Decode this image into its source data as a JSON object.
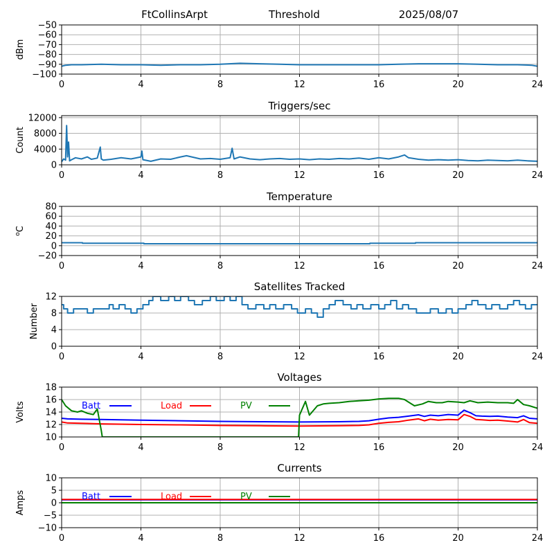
{
  "header": {
    "station": "FtCollinsArpt",
    "title": "Threshold",
    "date": "2025/08/07"
  },
  "colors": {
    "default_line": "#1f77b4",
    "batt": "#0000ff",
    "load": "#ff0000",
    "pv": "#008000",
    "grid": "#b0b0b0"
  },
  "chart_data": [
    {
      "type": "line",
      "title": "",
      "xlabel": "",
      "ylabel": "dBm",
      "xlim": [
        0,
        24
      ],
      "ylim": [
        -100,
        -50
      ],
      "xticks": [
        0,
        4,
        8,
        12,
        16,
        20,
        24
      ],
      "yticks": [
        -100,
        -90,
        -80,
        -70,
        -60,
        -50
      ],
      "grid": true,
      "series": [
        {
          "x": [
            0,
            0.2,
            0.5,
            1,
            2,
            3,
            4,
            5,
            6,
            7,
            8,
            9,
            10,
            11,
            12,
            13,
            14,
            15,
            16,
            17,
            18,
            19,
            20,
            21,
            22,
            23,
            23.7,
            24
          ],
          "y": [
            -92,
            -91,
            -90.5,
            -90.5,
            -90,
            -90.5,
            -90.5,
            -91,
            -90.5,
            -90.5,
            -90,
            -89,
            -89.5,
            -90,
            -90.5,
            -90.5,
            -90.5,
            -90.5,
            -90.5,
            -90,
            -89.5,
            -89.5,
            -89.5,
            -90,
            -90.5,
            -90.5,
            -91,
            -92
          ]
        }
      ]
    },
    {
      "type": "line",
      "title": "Triggers/sec",
      "xlabel": "",
      "ylabel": "Count",
      "xlim": [
        0,
        24
      ],
      "ylim": [
        0,
        12500
      ],
      "xticks": [
        0,
        4,
        8,
        12,
        16,
        20,
        24
      ],
      "yticks": [
        0,
        4000,
        8000,
        12000
      ],
      "grid": true,
      "series": [
        {
          "x": [
            0,
            0.1,
            0.2,
            0.25,
            0.3,
            0.35,
            0.4,
            0.5,
            0.7,
            1,
            1.3,
            1.5,
            1.8,
            1.95,
            2,
            2.1,
            2.5,
            3,
            3.5,
            4,
            4.05,
            4.1,
            4.5,
            5,
            5.5,
            6,
            6.3,
            7,
            7.5,
            8,
            8.5,
            8.6,
            8.7,
            9,
            9.5,
            10,
            10.5,
            11,
            11.5,
            12,
            12.5,
            13,
            13.5,
            14,
            14.5,
            15,
            15.5,
            16,
            16.5,
            17,
            17.3,
            17.5,
            18,
            18.5,
            19,
            19.5,
            20,
            20.5,
            21,
            21.5,
            22,
            22.5,
            23,
            23.5,
            24
          ],
          "y": [
            800,
            1500,
            1200,
            10000,
            2000,
            5800,
            1000,
            1300,
            1800,
            1500,
            2000,
            1400,
            1700,
            4500,
            1500,
            1200,
            1400,
            1800,
            1500,
            2000,
            3500,
            1300,
            900,
            1500,
            1400,
            2000,
            2300,
            1500,
            1600,
            1400,
            1800,
            4200,
            1500,
            2000,
            1500,
            1300,
            1500,
            1600,
            1400,
            1500,
            1300,
            1500,
            1400,
            1600,
            1500,
            1700,
            1400,
            1800,
            1500,
            2000,
            2500,
            1800,
            1400,
            1200,
            1300,
            1200,
            1300,
            1100,
            1000,
            1200,
            1100,
            1000,
            1200,
            1000,
            900
          ]
        }
      ]
    },
    {
      "type": "line",
      "title": "Temperature",
      "xlabel": "",
      "ylabel": "°C",
      "ylabel_prefix": "o",
      "ylabel_main": "C",
      "xlim": [
        0,
        24
      ],
      "ylim": [
        -20,
        80
      ],
      "xticks": [
        0,
        4,
        8,
        12,
        16,
        20,
        24
      ],
      "yticks": [
        -20,
        0,
        20,
        40,
        60,
        80
      ],
      "grid": true,
      "series": [
        {
          "x": [
            0,
            1,
            1.05,
            4.1,
            4.15,
            15.5,
            15.55,
            17.8,
            17.85,
            24
          ],
          "y": [
            6,
            6,
            5,
            5,
            4,
            4,
            5,
            5,
            6,
            6
          ],
          "step": true
        }
      ]
    },
    {
      "type": "line",
      "title": "Satellites Tracked",
      "xlabel": "",
      "ylabel": "Number",
      "xlim": [
        0,
        24
      ],
      "ylim": [
        0,
        12
      ],
      "xticks": [
        0,
        4,
        8,
        12,
        16,
        20,
        24
      ],
      "yticks": [
        0,
        4,
        8,
        12
      ],
      "grid": true,
      "series": [
        {
          "x": [
            0,
            0.1,
            0.3,
            0.6,
            1,
            1.3,
            1.6,
            2.2,
            2.4,
            2.6,
            2.9,
            3.2,
            3.5,
            3.8,
            4.1,
            4.4,
            4.6,
            5,
            5.4,
            5.7,
            6,
            6.4,
            6.7,
            7.1,
            7.5,
            7.8,
            8.2,
            8.5,
            8.8,
            9.1,
            9.4,
            9.8,
            10.2,
            10.5,
            10.8,
            11.2,
            11.6,
            11.9,
            12.3,
            12.6,
            12.9,
            13.2,
            13.5,
            13.8,
            14.2,
            14.6,
            14.9,
            15.2,
            15.6,
            16,
            16.3,
            16.6,
            16.9,
            17.2,
            17.5,
            17.9,
            18.3,
            18.6,
            19,
            19.4,
            19.7,
            20,
            20.4,
            20.7,
            21,
            21.4,
            21.7,
            22.1,
            22.5,
            22.8,
            23.1,
            23.4,
            23.7,
            24
          ],
          "y": [
            10,
            9,
            8,
            9,
            9,
            8,
            9,
            9,
            10,
            9,
            10,
            9,
            8,
            9,
            10,
            11,
            12,
            11,
            12,
            11,
            12,
            11,
            10,
            11,
            12,
            11,
            12,
            11,
            12,
            10,
            9,
            10,
            9,
            10,
            9,
            10,
            9,
            8,
            9,
            8,
            7,
            9,
            10,
            11,
            10,
            9,
            10,
            9,
            10,
            9,
            10,
            11,
            9,
            10,
            9,
            8,
            8,
            9,
            8,
            9,
            8,
            9,
            10,
            11,
            10,
            9,
            10,
            9,
            10,
            11,
            10,
            9,
            10,
            10
          ],
          "step": true
        }
      ]
    },
    {
      "type": "line",
      "title": "Voltages",
      "xlabel": "",
      "ylabel": "Volts",
      "xlim": [
        0,
        24
      ],
      "ylim": [
        10,
        18
      ],
      "xticks": [
        0,
        4,
        8,
        12,
        16,
        20,
        24
      ],
      "yticks": [
        10,
        12,
        14,
        16,
        18
      ],
      "grid": true,
      "legend": "top",
      "series": [
        {
          "name": "Batt",
          "x": [
            0,
            0.3,
            1,
            2,
            4,
            6,
            8,
            10,
            12,
            14,
            15,
            15.5,
            16,
            16.5,
            17,
            17.5,
            18,
            18.3,
            18.6,
            19,
            19.5,
            20,
            20.3,
            20.6,
            20.9,
            21.2,
            21.6,
            22,
            22.5,
            23,
            23.3,
            23.6,
            24
          ],
          "y": [
            13,
            12.9,
            12.85,
            12.8,
            12.7,
            12.6,
            12.5,
            12.45,
            12.4,
            12.45,
            12.5,
            12.6,
            12.85,
            13.05,
            13.15,
            13.35,
            13.55,
            13.3,
            13.5,
            13.4,
            13.6,
            13.5,
            14.3,
            13.9,
            13.4,
            13.35,
            13.3,
            13.35,
            13.2,
            13.1,
            13.4,
            13.0,
            12.9
          ]
        },
        {
          "name": "Load",
          "x": [
            0,
            0.3,
            1,
            2,
            4,
            6,
            8,
            10,
            12,
            14,
            15,
            15.5,
            16,
            16.5,
            17,
            17.5,
            18,
            18.3,
            18.6,
            19,
            19.5,
            20,
            20.3,
            20.6,
            20.9,
            21.2,
            21.6,
            22,
            22.5,
            23,
            23.3,
            23.6,
            24
          ],
          "y": [
            12.4,
            12.25,
            12.2,
            12.1,
            12.0,
            11.95,
            11.85,
            11.8,
            11.75,
            11.8,
            11.85,
            11.95,
            12.2,
            12.35,
            12.45,
            12.7,
            12.9,
            12.6,
            12.85,
            12.7,
            12.8,
            12.75,
            13.6,
            13.3,
            12.8,
            12.75,
            12.65,
            12.7,
            12.55,
            12.4,
            12.8,
            12.3,
            12.2
          ]
        },
        {
          "name": "PV",
          "x": [
            0,
            0.2,
            0.5,
            0.8,
            1.0,
            1.3,
            1.6,
            1.8,
            2.0,
            2.05,
            11.95,
            12.0,
            12.3,
            12.5,
            12.9,
            13.2,
            13.5,
            14.0,
            14.5,
            15.0,
            15.5,
            16.0,
            16.5,
            17.0,
            17.3,
            17.5,
            17.8,
            18.2,
            18.5,
            18.9,
            19.2,
            19.5,
            20.0,
            20.3,
            20.6,
            21.0,
            21.5,
            22.0,
            22.5,
            22.8,
            23.0,
            23.3,
            23.6,
            24
          ],
          "y": [
            16,
            15,
            14.2,
            14.0,
            14.2,
            13.8,
            13.6,
            14.5,
            11,
            10,
            10,
            13.5,
            15.7,
            13.5,
            15.0,
            15.3,
            15.4,
            15.5,
            15.7,
            15.8,
            15.9,
            16.1,
            16.2,
            16.2,
            16.0,
            15.6,
            15.0,
            15.3,
            15.7,
            15.5,
            15.5,
            15.7,
            15.6,
            15.5,
            15.8,
            15.5,
            15.6,
            15.5,
            15.5,
            15.4,
            16.0,
            15.2,
            15.0,
            14.6
          ]
        }
      ]
    },
    {
      "type": "line",
      "title": "Currents",
      "xlabel": "",
      "ylabel": "Amps",
      "xlim": [
        0,
        24
      ],
      "ylim": [
        -10,
        10
      ],
      "xticks": [
        0,
        4,
        8,
        12,
        16,
        20,
        24
      ],
      "yticks": [
        -10,
        -5,
        0,
        5,
        10
      ],
      "grid": true,
      "legend": "top",
      "series": [
        {
          "name": "Batt",
          "x": [
            0,
            24
          ],
          "y": [
            1.2,
            1.2
          ]
        },
        {
          "name": "Load",
          "x": [
            0,
            24
          ],
          "y": [
            1.3,
            1.3
          ]
        },
        {
          "name": "PV",
          "x": [
            0,
            24
          ],
          "y": [
            0,
            0
          ]
        }
      ]
    }
  ]
}
